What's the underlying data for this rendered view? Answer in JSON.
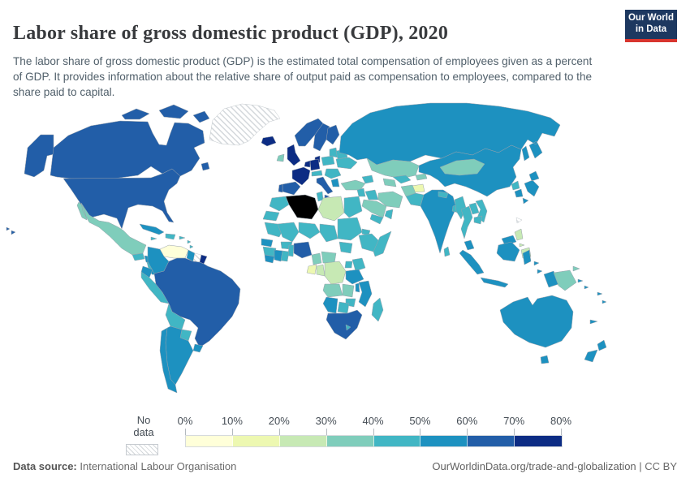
{
  "header": {
    "title": "Labor share of gross domestic product (GDP), 2020",
    "subtitle": "The labor share of gross domestic product (GDP) is the estimated total compensation of employees given as a percent of GDP. It provides information about the relative share of output paid as compensation to employees, compared to the share paid to capital.",
    "logo": {
      "line1": "Our World",
      "line2": "in Data",
      "bg_color": "#1d3860",
      "accent_color": "#d8352e"
    }
  },
  "legend": {
    "no_data_label": "No data",
    "tick_labels": [
      "0%",
      "10%",
      "20%",
      "30%",
      "40%",
      "50%",
      "60%",
      "70%",
      "80%"
    ],
    "bins": [
      {
        "range": "0-10%",
        "color": "#ffffd9"
      },
      {
        "range": "10-20%",
        "color": "#edf8b1"
      },
      {
        "range": "20-30%",
        "color": "#c7e9b4"
      },
      {
        "range": "30-40%",
        "color": "#7fcdbb"
      },
      {
        "range": "40-50%",
        "color": "#41b6c4"
      },
      {
        "range": "50-60%",
        "color": "#1d91c0"
      },
      {
        "range": "60-70%",
        "color": "#225ea8"
      },
      {
        "range": "70-80%",
        "color": "#0c2c84"
      }
    ]
  },
  "footer": {
    "source_label": "Data source:",
    "source_value": " International Labour Organisation",
    "url": "OurWorldinData.org/trade-and-globalization",
    "license_sep": " | CC BY"
  },
  "chart_data": {
    "type": "heatmap",
    "subtype": "choropleth-world-map",
    "title": "Labor share of gross domestic product (GDP), 2020",
    "unit": "% of GDP",
    "scale_range": [
      "0%",
      "80%"
    ],
    "legend_position": "bottom",
    "no_data_style": "diagonal-hatch",
    "regions": {
      "venezuela": "0-10%",
      "tajikistan": "10-20%",
      "gabon": "10-20%",
      "libya": "20-30%",
      "congo": "20-30%",
      "drc": "20-30%",
      "philippines": "20-30%",
      "mexico": "30-40%",
      "ireland": "30-40%",
      "turkey": "30-40%",
      "iran": "30-40%",
      "saudi-arabia": "30-40%",
      "kazakhstan": "30-40%",
      "turkmenistan": "30-40%",
      "kyrgyzstan": "30-40%",
      "afghanistan": "30-40%",
      "mongolia": "30-40%",
      "png": "30-40%",
      "cameroon": "30-40%",
      "central-african-republic": "30-40%",
      "angola": "30-40%",
      "zambia": "30-40%",
      "guatemala": "40-50%",
      "nicaragua": "40-50%",
      "hispaniola": "40-50%",
      "caribbean-islands": "40-50%",
      "peru": "40-50%",
      "bolivia": "40-50%",
      "paraguay": "40-50%",
      "baltics": "40-50%",
      "poland-czechia": "40-50%",
      "belarus": "40-50%",
      "ukraine": "40-50%",
      "balkans": "40-50%",
      "switzerland-austria": "40-50%",
      "caucasus": "40-50%",
      "syria-levant": "40-50%",
      "iraq": "40-50%",
      "yemen": "40-50%",
      "oman": "40-50%",
      "uzbekistan": "40-50%",
      "pakistan": "40-50%",
      "nepal": "40-50%",
      "bangladesh": "40-50%",
      "sri-lanka": "40-50%",
      "north-korea": "40-50%",
      "myanmar": "40-50%",
      "thailand": "40-50%",
      "laos": "40-50%",
      "vietnam": "40-50%",
      "cambodia": "40-50%",
      "morocco": "40-50%",
      "western-sahara": "40-50%",
      "tunisia": "40-50%",
      "egypt": "40-50%",
      "mauritania": "40-50%",
      "mali": "40-50%",
      "niger": "40-50%",
      "chad": "40-50%",
      "sudan": "40-50%",
      "south-sudan": "40-50%",
      "eritrea": "40-50%",
      "ethiopia": "40-50%",
      "somalia": "40-50%",
      "guinea": "40-50%",
      "ghana": "40-50%",
      "burkina-faso": "40-50%",
      "benin-togo": "40-50%",
      "uganda": "40-50%",
      "kenya": "40-50%",
      "zimbabwe": "40-50%",
      "botswana": "40-50%",
      "lesotho": "40-50%",
      "madagascar": "40-50%",
      "honduras": "50-60%",
      "costa-rica": "50-60%",
      "panama": "50-60%",
      "cuba": "50-60%",
      "colombia": "50-60%",
      "ecuador": "50-60%",
      "guyana": "50-60%",
      "chile": "50-60%",
      "argentina": "50-60%",
      "uruguay": "50-60%",
      "greece": "50-60%",
      "russia": "50-60%",
      "china": "50-60%",
      "south-korea": "50-60%",
      "japan": "50-60%",
      "india": "50-60%",
      "malaysia": "50-60%",
      "indonesia": "50-60%",
      "australia": "50-60%",
      "tasmania": "50-60%",
      "new-zealand": "50-60%",
      "pacific-islands": "50-60%",
      "senegal": "50-60%",
      "sierra-leone-liberia": "50-60%",
      "ivory-coast": "50-60%",
      "tanzania": "50-60%",
      "malawi": "50-60%",
      "mozambique": "50-60%",
      "namibia": "50-60%",
      "alaska": "60-70%",
      "hawaii": "60-70%",
      "canada": "60-70%",
      "arctic-islands": "60-70%",
      "newfoundland": "60-70%",
      "usa": "60-70%",
      "brazil": "60-70%",
      "spain": "60-70%",
      "portugal": "60-70%",
      "italy": "60-70%",
      "norway": "60-70%",
      "sweden": "60-70%",
      "finland": "60-70%",
      "nigeria": "60-70%",
      "south-africa": "60-70%",
      "iceland": "70-80%",
      "uk": "70-80%",
      "france": "70-80%",
      "germany": "70-80%",
      "benelux": "70-80%",
      "denmark": "70-80%",
      "french-guiana": "70-80%",
      "greenland": "no-data",
      "suriname": "no-data",
      "taiwan": "no-data"
    }
  }
}
